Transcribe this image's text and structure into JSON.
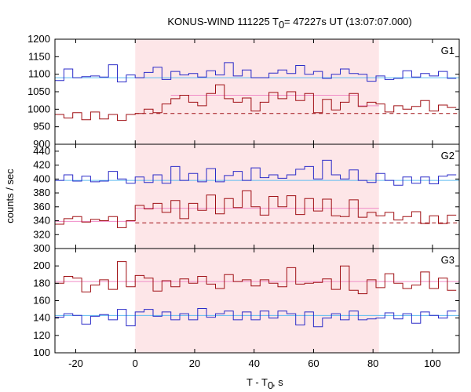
{
  "chart_data": {
    "type": "line",
    "title": "KONUS-WIND 111225 T",
    "title_sub": "0",
    "title_rest": " = 47227s UT (13:07:07.000)",
    "xlabel": "T - T",
    "xlabel_sub": "0",
    "xlabel_rest": ", s",
    "ylabel": "counts / sec",
    "xlim": [
      -27,
      109
    ],
    "x_ticks": [
      -20,
      0,
      20,
      40,
      60,
      80,
      100
    ],
    "shaded_interval": [
      0,
      82
    ],
    "colors": {
      "blue": "#2b2bc8",
      "red": "#a01015",
      "cyan": "#5fbcf0",
      "pink": "#f08cc8",
      "shade": "#fde6e8"
    },
    "panels": [
      {
        "label": "G1",
        "ylim": [
          900,
          1200
        ],
        "y_ticks": [
          900,
          950,
          1000,
          1050,
          1100,
          1150,
          1200
        ],
        "x_edges": [
          -27,
          -24,
          -21,
          -18,
          -15,
          -12,
          -9,
          -6,
          -3,
          0,
          3,
          6,
          9,
          12,
          15,
          18,
          21,
          24,
          27,
          30,
          33,
          36,
          39,
          42,
          45,
          48,
          51,
          54,
          57,
          60,
          63,
          66,
          69,
          72,
          75,
          78,
          81,
          84,
          87,
          90,
          93,
          96,
          99,
          102,
          105,
          108
        ],
        "series": [
          {
            "name": "blue",
            "color": "blue",
            "values": [
              1082,
              1115,
              1090,
              1093,
              1095,
              1092,
              1127,
              1078,
              1098,
              1090,
              1105,
              1120,
              1085,
              1108,
              1098,
              1102,
              1092,
              1110,
              1098,
              1133,
              1095,
              1112,
              1090,
              1090,
              1103,
              1112,
              1102,
              1125,
              1100,
              1108,
              1088,
              1100,
              1115,
              1102,
              1100,
              1080,
              1095,
              1085,
              1088,
              1110,
              1092,
              1102,
              1095,
              1108,
              1088
            ]
          },
          {
            "name": "red",
            "color": "red",
            "values": [
              985,
              975,
              990,
              970,
              992,
              972,
              985,
              968,
              985,
              988,
              1000,
              990,
              1015,
              1030,
              1040,
              1020,
              1010,
              1045,
              1070,
              1030,
              1020,
              1032,
              995,
              1020,
              1048,
              1030,
              1050,
              1025,
              1045,
              990,
              1028,
              998,
              1020,
              1045,
              1008,
              1020,
              1015,
              992,
              1010,
              1000,
              1008,
              1025,
              995,
              1012,
              1005
            ]
          }
        ],
        "fits": [
          {
            "color": "cyan",
            "dash": false,
            "y": 1090,
            "x0": -27,
            "x1": 109
          },
          {
            "color": "red",
            "dash": true,
            "y": 988,
            "x0": 0,
            "x1": 109
          },
          {
            "color": "pink",
            "dash": false,
            "y": 1040,
            "x0": 12,
            "x1": 75
          },
          {
            "color": "pink",
            "dash": false,
            "y": 1010,
            "x0": 75,
            "x1": 82
          }
        ]
      },
      {
        "label": "G2",
        "ylim": [
          300,
          450
        ],
        "y_ticks": [
          300,
          320,
          340,
          360,
          380,
          400,
          420,
          440
        ],
        "x_edges": [
          -27,
          -24,
          -21,
          -18,
          -15,
          -12,
          -9,
          -6,
          -3,
          0,
          3,
          6,
          9,
          12,
          15,
          18,
          21,
          24,
          27,
          30,
          33,
          36,
          39,
          42,
          45,
          48,
          51,
          54,
          57,
          60,
          63,
          66,
          69,
          72,
          75,
          78,
          81,
          84,
          87,
          90,
          93,
          96,
          99,
          102,
          105,
          108
        ],
        "series": [
          {
            "name": "blue",
            "color": "blue",
            "values": [
              398,
              406,
              397,
              404,
              396,
              397,
              411,
              400,
              394,
              403,
              395,
              406,
              394,
              418,
              398,
              408,
              396,
              415,
              396,
              405,
              411,
              398,
              416,
              402,
              406,
              401,
              406,
              414,
              418,
              400,
              427,
              406,
              400,
              413,
              398,
              395,
              408,
              398,
              391,
              403,
              394,
              403,
              393,
              404,
              406
            ]
          },
          {
            "name": "red",
            "color": "red",
            "values": [
              335,
              343,
              346,
              338,
              342,
              340,
              346,
              330,
              340,
              362,
              357,
              365,
              352,
              369,
              343,
              365,
              355,
              377,
              350,
              372,
              359,
              383,
              360,
              348,
              375,
              360,
              376,
              349,
              372,
              354,
              371,
              347,
              346,
              370,
              345,
              352,
              347,
              352,
              341,
              346,
              353,
              336,
              347,
              336,
              348
            ]
          }
        ],
        "fits": [
          {
            "color": "cyan",
            "dash": false,
            "y": 398,
            "x0": -27,
            "x1": 109
          },
          {
            "color": "red",
            "dash": true,
            "y": 337,
            "x0": 0,
            "x1": 109
          },
          {
            "color": "pink",
            "dash": false,
            "y": 358,
            "x0": 0,
            "x1": 82
          },
          {
            "color": "pink",
            "dash": false,
            "y": 339,
            "x0": -27,
            "x1": 0
          }
        ]
      },
      {
        "label": "G3",
        "ylim": [
          100,
          220
        ],
        "y_ticks": [
          100,
          120,
          140,
          160,
          180,
          200
        ],
        "x_edges": [
          -27,
          -24,
          -21,
          -18,
          -15,
          -12,
          -9,
          -6,
          -3,
          0,
          3,
          6,
          9,
          12,
          15,
          18,
          21,
          24,
          27,
          30,
          33,
          36,
          39,
          42,
          45,
          48,
          51,
          54,
          57,
          60,
          63,
          66,
          69,
          72,
          75,
          78,
          81,
          84,
          87,
          90,
          93,
          96,
          99,
          102,
          105,
          108
        ],
        "series": [
          {
            "name": "red",
            "color": "red",
            "values": [
              180,
              188,
              186,
              170,
              178,
              184,
              173,
              205,
              176,
              189,
              186,
              171,
              183,
              176,
              185,
              180,
              188,
              179,
              174,
              190,
              182,
              184,
              177,
              184,
              180,
              176,
              198,
              179,
              180,
              181,
              185,
              173,
              200,
              172,
              168,
              184,
              175,
              191,
              180,
              174,
              178,
              193,
              174,
              186,
              172
            ]
          },
          {
            "name": "blue",
            "color": "blue",
            "values": [
              141,
              145,
              143,
              133,
              142,
              144,
              138,
              150,
              131,
              147,
              150,
              142,
              147,
              138,
              145,
              138,
              151,
              141,
              145,
              148,
              138,
              147,
              138,
              148,
              140,
              148,
              145,
              132,
              147,
              130,
              140,
              145,
              138,
              148,
              138,
              139,
              140,
              146,
              139,
              145,
              134,
              147,
              143,
              140,
              148
            ]
          }
        ],
        "fits": [
          {
            "color": "cyan",
            "dash": false,
            "y": 143,
            "x0": -27,
            "x1": 109
          },
          {
            "color": "pink",
            "dash": false,
            "y": 182,
            "x0": -27,
            "x1": 109
          }
        ]
      }
    ]
  }
}
